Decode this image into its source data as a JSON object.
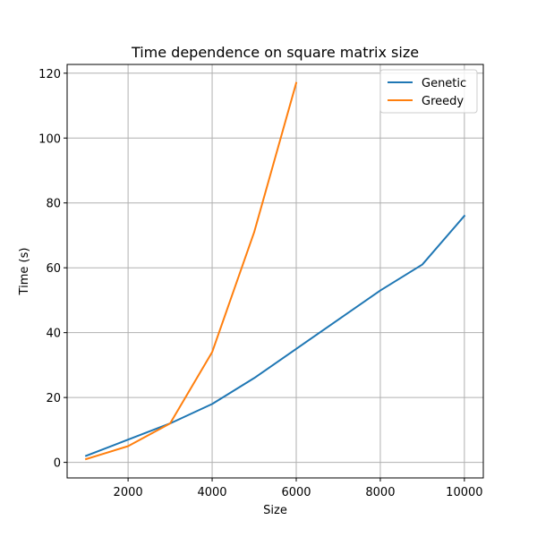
{
  "chart_data": {
    "type": "line",
    "title": "Time dependence on square matrix size",
    "xlabel": "Size",
    "ylabel": "Time (s)",
    "xlim": [
      550,
      10450
    ],
    "ylim": [
      -4.8,
      122.7
    ],
    "xticks": [
      2000,
      4000,
      6000,
      8000,
      10000
    ],
    "yticks": [
      0,
      20,
      40,
      60,
      80,
      100,
      120
    ],
    "grid": true,
    "legend_position": "upper right",
    "series": [
      {
        "name": "Genetic",
        "color": "#1f77b4",
        "x": [
          1000,
          2000,
          3000,
          4000,
          5000,
          6000,
          7000,
          8000,
          9000,
          10000
        ],
        "y": [
          2,
          7,
          12,
          18,
          26,
          35,
          44,
          53,
          61,
          76
        ]
      },
      {
        "name": "Greedy",
        "color": "#ff7f0e",
        "x": [
          1000,
          2000,
          3000,
          4000,
          5000,
          6000
        ],
        "y": [
          1,
          5,
          12,
          34,
          71,
          117
        ]
      }
    ]
  }
}
